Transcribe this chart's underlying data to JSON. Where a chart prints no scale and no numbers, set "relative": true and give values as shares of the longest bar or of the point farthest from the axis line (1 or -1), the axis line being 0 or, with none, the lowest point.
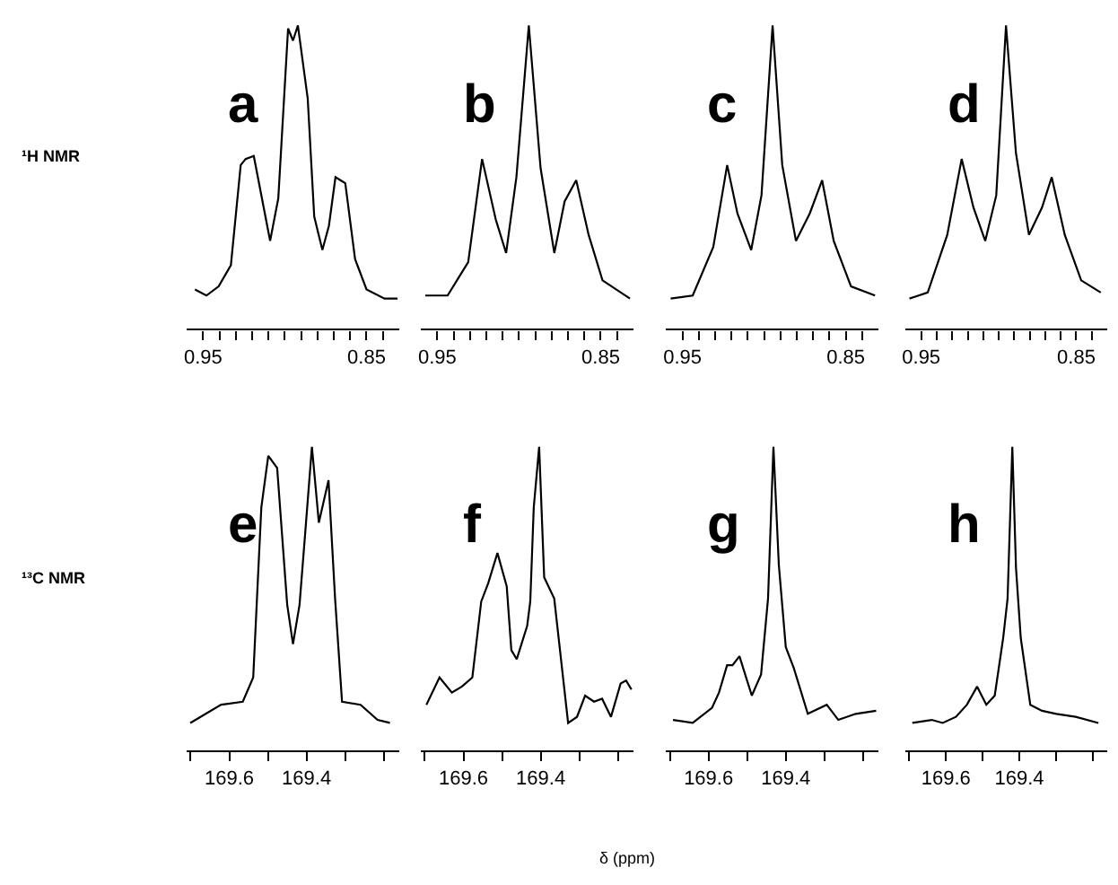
{
  "chart_data": [
    {
      "type": "line",
      "title": "a",
      "relative": true,
      "annotations": [
        "¹H NMR"
      ],
      "xlim": [
        0.96,
        0.83
      ],
      "xticks": [
        {
          "value": 0.95,
          "label": "0.95"
        },
        {
          "value": 0.94,
          "label": null
        },
        {
          "value": 0.93,
          "label": null
        },
        {
          "value": 0.92,
          "label": null
        },
        {
          "value": 0.91,
          "label": null
        },
        {
          "value": 0.9,
          "label": null
        },
        {
          "value": 0.89,
          "label": null
        },
        {
          "value": 0.88,
          "label": null
        },
        {
          "value": 0.87,
          "label": null
        },
        {
          "value": 0.86,
          "label": null
        },
        {
          "value": 0.85,
          "label": "0.85"
        },
        {
          "value": 0.84,
          "label": null
        }
      ],
      "series": [
        {
          "color": "#000000",
          "x": [
            0.955,
            0.948,
            0.9405,
            0.933,
            0.927,
            0.924,
            0.919,
            0.914,
            0.909,
            0.904,
            0.898,
            0.895,
            0.892,
            0.886,
            0.882,
            0.877,
            0.873,
            0.869,
            0.866,
            0.863,
            0.857,
            0.85,
            0.839,
            0.831
          ],
          "values": [
            0.13,
            0.11,
            0.14,
            0.21,
            0.54,
            0.56,
            0.57,
            0.43,
            0.29,
            0.43,
            0.99,
            0.95,
            1.0,
            0.76,
            0.37,
            0.26,
            0.34,
            0.5,
            0.49,
            0.48,
            0.23,
            0.13,
            0.1,
            0.1
          ]
        }
      ]
    },
    {
      "type": "line",
      "title": "b",
      "relative": true,
      "xlim": [
        0.96,
        0.83
      ],
      "xticks": [
        {
          "value": 0.95,
          "label": "0.95"
        },
        {
          "value": 0.94,
          "label": null
        },
        {
          "value": 0.93,
          "label": null
        },
        {
          "value": 0.92,
          "label": null
        },
        {
          "value": 0.91,
          "label": null
        },
        {
          "value": 0.9,
          "label": null
        },
        {
          "value": 0.89,
          "label": null
        },
        {
          "value": 0.88,
          "label": null
        },
        {
          "value": 0.87,
          "label": null
        },
        {
          "value": 0.86,
          "label": null
        },
        {
          "value": 0.85,
          "label": "0.85"
        },
        {
          "value": 0.84,
          "label": null
        }
      ],
      "series": [
        {
          "color": "#000000",
          "x": [
            0.9574,
            0.9437,
            0.9311,
            0.9226,
            0.9142,
            0.9079,
            0.9016,
            0.894,
            0.8868,
            0.8784,
            0.8721,
            0.865,
            0.8574,
            0.8489,
            0.8321
          ],
          "values": [
            0.11,
            0.11,
            0.22,
            0.56,
            0.36,
            0.25,
            0.5,
            1.0,
            0.53,
            0.25,
            0.42,
            0.49,
            0.31,
            0.16,
            0.1
          ]
        }
      ]
    },
    {
      "type": "line",
      "title": "c",
      "relative": true,
      "xlim": [
        0.96,
        0.83
      ],
      "xticks": [
        {
          "value": 0.95,
          "label": "0.95"
        },
        {
          "value": 0.94,
          "label": null
        },
        {
          "value": 0.93,
          "label": null
        },
        {
          "value": 0.92,
          "label": null
        },
        {
          "value": 0.91,
          "label": null
        },
        {
          "value": 0.9,
          "label": null
        },
        {
          "value": 0.89,
          "label": null
        },
        {
          "value": 0.88,
          "label": null
        },
        {
          "value": 0.87,
          "label": null
        },
        {
          "value": 0.86,
          "label": null
        },
        {
          "value": 0.85,
          "label": "0.85"
        },
        {
          "value": 0.84,
          "label": null
        }
      ],
      "series": [
        {
          "color": "#000000",
          "x": [
            0.9572,
            0.9437,
            0.9311,
            0.9226,
            0.9163,
            0.9079,
            0.9016,
            0.8948,
            0.8889,
            0.8805,
            0.8721,
            0.8645,
            0.8574,
            0.8468,
            0.8321
          ],
          "values": [
            0.1,
            0.11,
            0.27,
            0.54,
            0.38,
            0.26,
            0.44,
            1.0,
            0.54,
            0.29,
            0.38,
            0.49,
            0.29,
            0.14,
            0.11
          ]
        }
      ]
    },
    {
      "type": "line",
      "title": "d",
      "relative": true,
      "xlim": [
        0.96,
        0.83
      ],
      "xticks": [
        {
          "value": 0.95,
          "label": "0.95"
        },
        {
          "value": 0.94,
          "label": null
        },
        {
          "value": 0.93,
          "label": null
        },
        {
          "value": 0.92,
          "label": null
        },
        {
          "value": 0.91,
          "label": null
        },
        {
          "value": 0.9,
          "label": null
        },
        {
          "value": 0.89,
          "label": null
        },
        {
          "value": 0.88,
          "label": null
        },
        {
          "value": 0.87,
          "label": null
        },
        {
          "value": 0.86,
          "label": null
        },
        {
          "value": 0.85,
          "label": "0.85"
        },
        {
          "value": 0.84,
          "label": null
        }
      ],
      "series": [
        {
          "color": "#000000",
          "x": [
            0.9576,
            0.9458,
            0.9332,
            0.9239,
            0.9163,
            0.9087,
            0.9016,
            0.8953,
            0.8889,
            0.8805,
            0.8721,
            0.8658,
            0.8574,
            0.8468,
            0.8342
          ],
          "values": [
            0.1,
            0.12,
            0.31,
            0.56,
            0.4,
            0.29,
            0.44,
            1.0,
            0.58,
            0.31,
            0.4,
            0.5,
            0.31,
            0.16,
            0.12
          ]
        }
      ]
    },
    {
      "type": "line",
      "title": "e",
      "relative": true,
      "annotations": [
        "¹³C NMR",
        "δ (ppm)"
      ],
      "xlim": [
        169.71,
        169.16
      ],
      "xticks": [
        {
          "value": 169.7,
          "label": null
        },
        {
          "value": 169.6,
          "label": "169.6"
        },
        {
          "value": 169.5,
          "label": null
        },
        {
          "value": 169.4,
          "label": "169.4"
        },
        {
          "value": 169.3,
          "label": null
        },
        {
          "value": 169.2,
          "label": null
        }
      ],
      "series": [
        {
          "color": "#000000",
          "x": [
            169.701,
            169.621,
            169.565,
            169.538,
            169.529,
            169.517,
            169.499,
            169.476,
            169.45,
            169.435,
            169.418,
            169.405,
            169.386,
            169.368,
            169.343,
            169.326,
            169.308,
            169.26,
            169.216,
            169.184
          ],
          "values": [
            0.09,
            0.15,
            0.16,
            0.24,
            0.48,
            0.8,
            0.97,
            0.93,
            0.48,
            0.35,
            0.48,
            0.69,
            1.0,
            0.75,
            0.89,
            0.5,
            0.16,
            0.15,
            0.1,
            0.09
          ]
        }
      ]
    },
    {
      "type": "line",
      "title": "f",
      "relative": true,
      "xlim": [
        169.71,
        169.16
      ],
      "xticks": [
        {
          "value": 169.7,
          "label": null
        },
        {
          "value": 169.6,
          "label": "169.6"
        },
        {
          "value": 169.5,
          "label": null
        },
        {
          "value": 169.4,
          "label": "169.4"
        },
        {
          "value": 169.3,
          "label": null
        },
        {
          "value": 169.2,
          "label": null
        }
      ],
      "series": [
        {
          "color": "#000000",
          "x": [
            169.696,
            169.662,
            169.63,
            169.604,
            169.577,
            169.554,
            169.536,
            169.512,
            169.488,
            169.476,
            169.462,
            169.435,
            169.427,
            169.418,
            169.404,
            169.391,
            169.365,
            169.329,
            169.306,
            169.285,
            169.262,
            169.241,
            169.218,
            169.193,
            169.179,
            169.165
          ],
          "values": [
            0.15,
            0.24,
            0.19,
            0.21,
            0.24,
            0.49,
            0.55,
            0.65,
            0.54,
            0.33,
            0.3,
            0.41,
            0.49,
            0.8,
            1.0,
            0.57,
            0.5,
            0.09,
            0.11,
            0.18,
            0.16,
            0.17,
            0.11,
            0.22,
            0.23,
            0.2
          ]
        }
      ]
    },
    {
      "type": "line",
      "title": "g",
      "relative": true,
      "xlim": [
        169.71,
        169.16
      ],
      "xticks": [
        {
          "value": 169.7,
          "label": null
        },
        {
          "value": 169.6,
          "label": "169.6"
        },
        {
          "value": 169.5,
          "label": null
        },
        {
          "value": 169.4,
          "label": "169.4"
        },
        {
          "value": 169.3,
          "label": null
        },
        {
          "value": 169.2,
          "label": null
        }
      ],
      "series": [
        {
          "color": "#000000",
          "x": [
            169.692,
            169.641,
            169.591,
            169.573,
            169.552,
            169.538,
            169.52,
            169.488,
            169.464,
            169.446,
            169.432,
            169.418,
            169.4,
            169.379,
            169.343,
            169.294,
            169.264,
            169.219,
            169.166
          ],
          "values": [
            0.1,
            0.09,
            0.14,
            0.19,
            0.28,
            0.28,
            0.31,
            0.18,
            0.25,
            0.5,
            1.0,
            0.61,
            0.34,
            0.27,
            0.12,
            0.15,
            0.1,
            0.12,
            0.13
          ]
        }
      ]
    },
    {
      "type": "line",
      "title": "h",
      "relative": true,
      "xlim": [
        169.71,
        169.16
      ],
      "xticks": [
        {
          "value": 169.7,
          "label": null
        },
        {
          "value": 169.6,
          "label": "169.6"
        },
        {
          "value": 169.5,
          "label": null
        },
        {
          "value": 169.4,
          "label": "169.4"
        },
        {
          "value": 169.3,
          "label": null
        },
        {
          "value": 169.2,
          "label": null
        }
      ],
      "series": [
        {
          "color": "#000000",
          "x": [
            169.692,
            169.639,
            169.609,
            169.573,
            169.543,
            169.515,
            169.49,
            169.467,
            169.444,
            169.432,
            169.419,
            169.409,
            169.396,
            169.37,
            169.338,
            169.299,
            169.246,
            169.184
          ],
          "values": [
            0.09,
            0.1,
            0.09,
            0.11,
            0.15,
            0.21,
            0.15,
            0.18,
            0.37,
            0.5,
            1.0,
            0.6,
            0.37,
            0.15,
            0.13,
            0.12,
            0.11,
            0.09
          ]
        }
      ]
    }
  ]
}
